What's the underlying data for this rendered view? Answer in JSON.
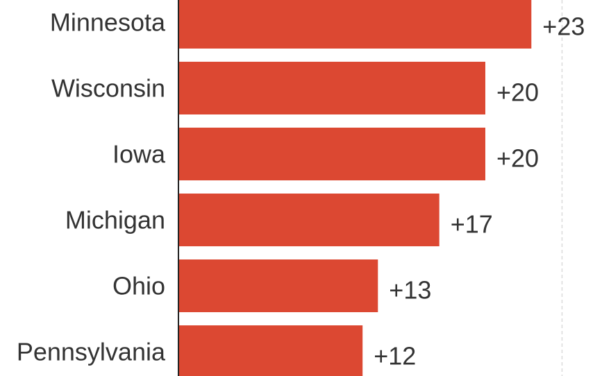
{
  "chart_data": {
    "type": "bar",
    "orientation": "horizontal",
    "categories": [
      "Minnesota",
      "Wisconsin",
      "Iowa",
      "Michigan",
      "Ohio",
      "Pennsylvania"
    ],
    "values": [
      23,
      20,
      20,
      17,
      13,
      12
    ],
    "value_labels": [
      "+23",
      "+20",
      "+20",
      "+17",
      "+13",
      "+12"
    ],
    "title": "",
    "xlabel": "",
    "ylabel": "",
    "xlim": [
      0,
      25
    ],
    "gridline_at": 25,
    "grid": "dashed vertical reference line",
    "legend": "none",
    "bar_color": "#dc4832",
    "axis_color": "#222222",
    "text_color": "#333333",
    "grid_color": "#d9d9d9"
  }
}
